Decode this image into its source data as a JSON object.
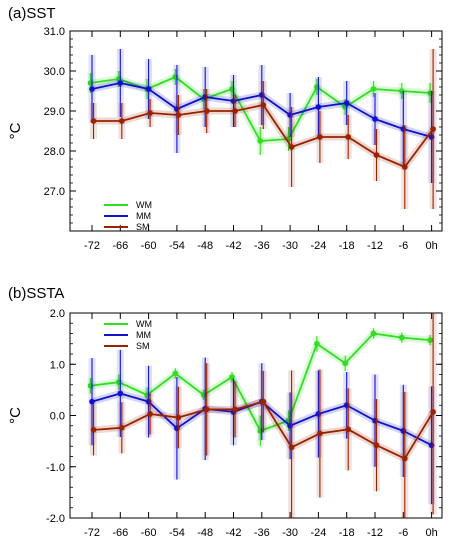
{
  "chart_data": [
    {
      "type": "line",
      "title": "(a)SST",
      "ylabel": "°C",
      "xlabel": "",
      "categories": [
        "-72",
        "-66",
        "-60",
        "-54",
        "-48",
        "-42",
        "-36",
        "-30",
        "-24",
        "-18",
        "-12",
        "-6",
        "0h"
      ],
      "ylim": [
        26.0,
        31.0
      ],
      "y_ticks": [
        "27.0",
        "28.0",
        "29.0",
        "30.0",
        "31.0"
      ],
      "legend_position": "bottom-left",
      "grid": false,
      "series": [
        {
          "name": "WM",
          "color": "#33dd22",
          "values": [
            29.7,
            29.8,
            29.55,
            29.85,
            29.3,
            29.55,
            28.25,
            28.3,
            29.6,
            29.1,
            29.55,
            29.5,
            29.45
          ],
          "errors": [
            0.25,
            0.2,
            0.25,
            0.2,
            0.25,
            0.2,
            0.35,
            0.3,
            0.2,
            0.2,
            0.2,
            0.2,
            0.25
          ]
        },
        {
          "name": "MM",
          "color": "#1111cc",
          "values": [
            29.55,
            29.7,
            29.55,
            29.05,
            29.35,
            29.25,
            29.4,
            28.9,
            29.1,
            29.2,
            28.8,
            28.55,
            28.35
          ],
          "errors": [
            0.85,
            0.85,
            0.75,
            1.1,
            0.75,
            0.65,
            0.75,
            0.55,
            0.75,
            0.55,
            0.65,
            0.95,
            1.15
          ]
        },
        {
          "name": "SM",
          "color": "#992200",
          "values": [
            28.75,
            28.75,
            28.95,
            28.9,
            29.0,
            29.0,
            29.15,
            28.1,
            28.35,
            28.35,
            27.9,
            27.6,
            28.55
          ],
          "errors": [
            0.45,
            0.45,
            0.35,
            0.5,
            0.55,
            0.4,
            0.6,
            1.0,
            0.65,
            0.55,
            0.65,
            1.05,
            2.0
          ]
        }
      ]
    },
    {
      "type": "line",
      "title": "(b)SSTA",
      "ylabel": "°C",
      "xlabel": "",
      "categories": [
        "-72",
        "-66",
        "-60",
        "-54",
        "-48",
        "-42",
        "-36",
        "-30",
        "-24",
        "-18",
        "-12",
        "-6",
        "0h"
      ],
      "ylim": [
        -2.0,
        2.0
      ],
      "y_ticks": [
        "-2.0",
        "-1.0",
        "0.0",
        "1.0",
        "2.0"
      ],
      "legend_position": "top-left",
      "grid": false,
      "series": [
        {
          "name": "WM",
          "color": "#33dd22",
          "values": [
            0.58,
            0.65,
            0.4,
            0.82,
            0.4,
            0.75,
            -0.3,
            -0.1,
            1.4,
            1.02,
            1.6,
            1.52,
            1.47
          ],
          "errors": [
            0.15,
            0.15,
            0.15,
            0.1,
            0.1,
            0.1,
            0.3,
            0.2,
            0.15,
            0.15,
            0.1,
            0.1,
            0.1
          ]
        },
        {
          "name": "MM",
          "color": "#1111cc",
          "values": [
            0.27,
            0.43,
            0.27,
            -0.25,
            0.13,
            0.07,
            0.27,
            -0.2,
            0.03,
            0.2,
            -0.1,
            -0.3,
            -0.58
          ],
          "errors": [
            0.85,
            0.85,
            0.7,
            1.0,
            1.0,
            0.65,
            0.75,
            0.65,
            0.85,
            0.65,
            0.9,
            0.9,
            1.15
          ]
        },
        {
          "name": "SM",
          "color": "#992200",
          "values": [
            -0.28,
            -0.24,
            0.03,
            -0.04,
            0.12,
            0.12,
            0.27,
            -0.62,
            -0.35,
            -0.27,
            -0.58,
            -0.84,
            0.07
          ],
          "errors": [
            0.5,
            0.5,
            0.4,
            0.6,
            0.9,
            0.55,
            0.6,
            1.5,
            1.25,
            0.8,
            0.9,
            1.3,
            2.0
          ]
        }
      ]
    }
  ]
}
